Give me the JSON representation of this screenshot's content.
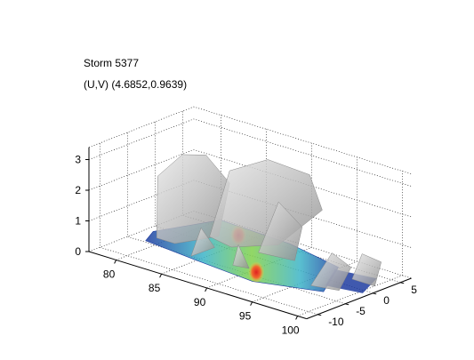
{
  "chart_data": {
    "type": "surface",
    "title_lines": [
      "Storm 5377",
      "(U,V) (4.6852,0.9639)"
    ],
    "x_ticks": [
      80,
      85,
      90,
      95,
      100
    ],
    "y_ticks": [
      5,
      0,
      -5,
      -10
    ],
    "z_ticks": [
      0,
      1,
      2,
      3
    ],
    "xlim": [
      77,
      101
    ],
    "ylim": [
      -12,
      7
    ],
    "zlim": [
      0,
      3.4
    ],
    "grid": true,
    "colors": {
      "surface": "#c8c8c8",
      "surface_edge": "#9a9a9a",
      "low": "#1e3ca0",
      "mid": "#3cb4c8",
      "high_mid": "#7fd04a",
      "peak": "#e02020"
    }
  }
}
